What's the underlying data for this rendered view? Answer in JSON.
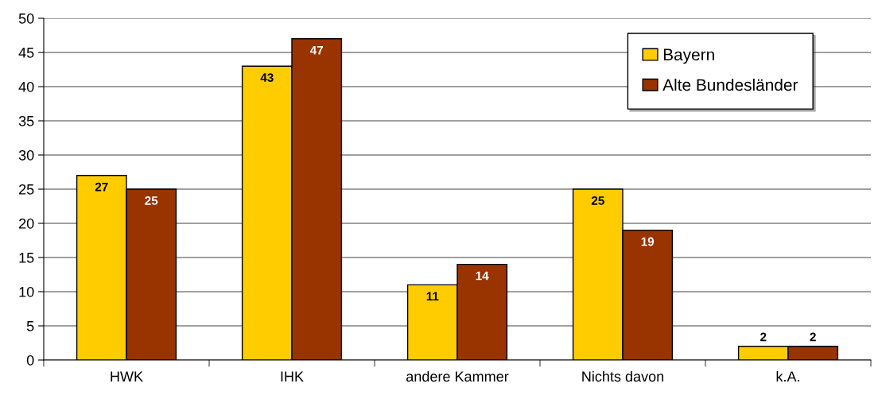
{
  "chart_data": {
    "type": "bar",
    "categories": [
      "HWK",
      "IHK",
      "andere Kammer",
      "Nichts davon",
      "k.A."
    ],
    "series": [
      {
        "name": "Bayern",
        "color": "#ffcc00",
        "values": [
          27,
          43,
          11,
          25,
          2
        ]
      },
      {
        "name": "Alte Bundesländer",
        "color": "#993300",
        "values": [
          25,
          47,
          14,
          19,
          2
        ]
      }
    ],
    "ylim": [
      0,
      50
    ],
    "yticks": [
      0,
      5,
      10,
      15,
      20,
      25,
      30,
      35,
      40,
      45,
      50
    ],
    "grid": "y",
    "legend": "top right",
    "data_labels": true
  }
}
